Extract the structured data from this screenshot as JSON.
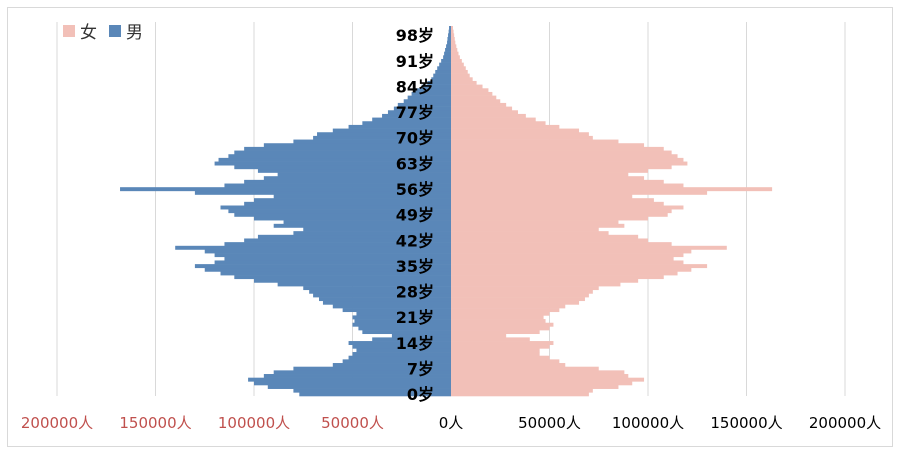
{
  "chart_data": {
    "type": "bar",
    "orientation": "horizontal-population-pyramid",
    "legend": [
      {
        "name": "女",
        "color": "#f2c0b8"
      },
      {
        "name": "男",
        "color": "#5a87b8"
      }
    ],
    "x_ticks_left": [
      "200000人",
      "150000人",
      "100000人",
      "50000人"
    ],
    "x_ticks_right": [
      "0人",
      "50000人",
      "100000人",
      "150000人",
      "200000人"
    ],
    "x_tick_values": [
      -200000,
      -150000,
      -100000,
      -50000,
      0,
      50000,
      100000,
      150000,
      200000
    ],
    "xlim": [
      -200000,
      200000
    ],
    "age_labels": [
      "98岁",
      "91岁",
      "84岁",
      "77岁",
      "70岁",
      "63岁",
      "56岁",
      "49岁",
      "42岁",
      "35岁",
      "28岁",
      "21岁",
      "14岁",
      "7岁",
      "0岁"
    ],
    "age_label_values": [
      98,
      91,
      84,
      77,
      70,
      63,
      56,
      49,
      42,
      35,
      28,
      21,
      14,
      7,
      0
    ],
    "ages": [
      0,
      1,
      2,
      3,
      4,
      5,
      6,
      7,
      8,
      9,
      10,
      11,
      12,
      13,
      14,
      15,
      16,
      17,
      18,
      19,
      20,
      21,
      22,
      23,
      24,
      25,
      26,
      27,
      28,
      29,
      30,
      31,
      32,
      33,
      34,
      35,
      36,
      37,
      38,
      39,
      40,
      41,
      42,
      43,
      44,
      45,
      46,
      47,
      48,
      49,
      50,
      51,
      52,
      53,
      54,
      55,
      56,
      57,
      58,
      59,
      60,
      61,
      62,
      63,
      64,
      65,
      66,
      67,
      68,
      69,
      70,
      71,
      72,
      73,
      74,
      75,
      76,
      77,
      78,
      79,
      80,
      81,
      82,
      83,
      84,
      85,
      86,
      87,
      88,
      89,
      90,
      91,
      92,
      93,
      94,
      95,
      96,
      97,
      98,
      99,
      100
    ],
    "series": [
      {
        "name": "男",
        "color": "#5a87b8",
        "values": [
          77000,
          80000,
          93000,
          100000,
          103000,
          95000,
          90000,
          80000,
          60000,
          55000,
          52000,
          50000,
          48000,
          50000,
          52000,
          40000,
          30000,
          45000,
          47000,
          50000,
          49000,
          50000,
          48000,
          55000,
          60000,
          65000,
          67000,
          70000,
          72000,
          75000,
          88000,
          100000,
          110000,
          117000,
          125000,
          130000,
          120000,
          115000,
          120000,
          125000,
          140000,
          115000,
          105000,
          98000,
          80000,
          75000,
          90000,
          85000,
          100000,
          110000,
          113000,
          117000,
          105000,
          100000,
          90000,
          130000,
          168000,
          115000,
          105000,
          95000,
          88000,
          98000,
          110000,
          120000,
          118000,
          113000,
          110000,
          105000,
          95000,
          80000,
          70000,
          68000,
          60000,
          52000,
          45000,
          40000,
          35000,
          32000,
          29000,
          27000,
          24000,
          22000,
          20000,
          18000,
          15000,
          12000,
          10000,
          9000,
          8000,
          7000,
          6000,
          5000,
          4000,
          3500,
          3000,
          2500,
          2000,
          1800,
          1500,
          1200,
          1000
        ]
      },
      {
        "name": "女",
        "color": "#f2c0b8",
        "values": [
          70000,
          72000,
          85000,
          92000,
          98000,
          90000,
          88000,
          75000,
          58000,
          55000,
          50000,
          45000,
          45000,
          50000,
          52000,
          40000,
          28000,
          45000,
          50000,
          52000,
          48000,
          47000,
          50000,
          55000,
          58000,
          65000,
          68000,
          70000,
          72000,
          75000,
          86000,
          95000,
          108000,
          115000,
          122000,
          130000,
          118000,
          113000,
          118000,
          122000,
          140000,
          112000,
          100000,
          95000,
          80000,
          75000,
          88000,
          85000,
          100000,
          110000,
          112000,
          118000,
          108000,
          103000,
          92000,
          130000,
          163000,
          118000,
          108000,
          98000,
          90000,
          100000,
          112000,
          120000,
          118000,
          115000,
          112000,
          108000,
          98000,
          85000,
          72000,
          70000,
          65000,
          55000,
          48000,
          43000,
          38000,
          34000,
          31000,
          28000,
          25000,
          23000,
          21000,
          19000,
          16000,
          13000,
          11000,
          9500,
          8500,
          7500,
          6500,
          5500,
          4500,
          3800,
          3200,
          2700,
          2200,
          1900,
          1600,
          1300,
          1000
        ]
      }
    ],
    "grid": "vertical"
  }
}
